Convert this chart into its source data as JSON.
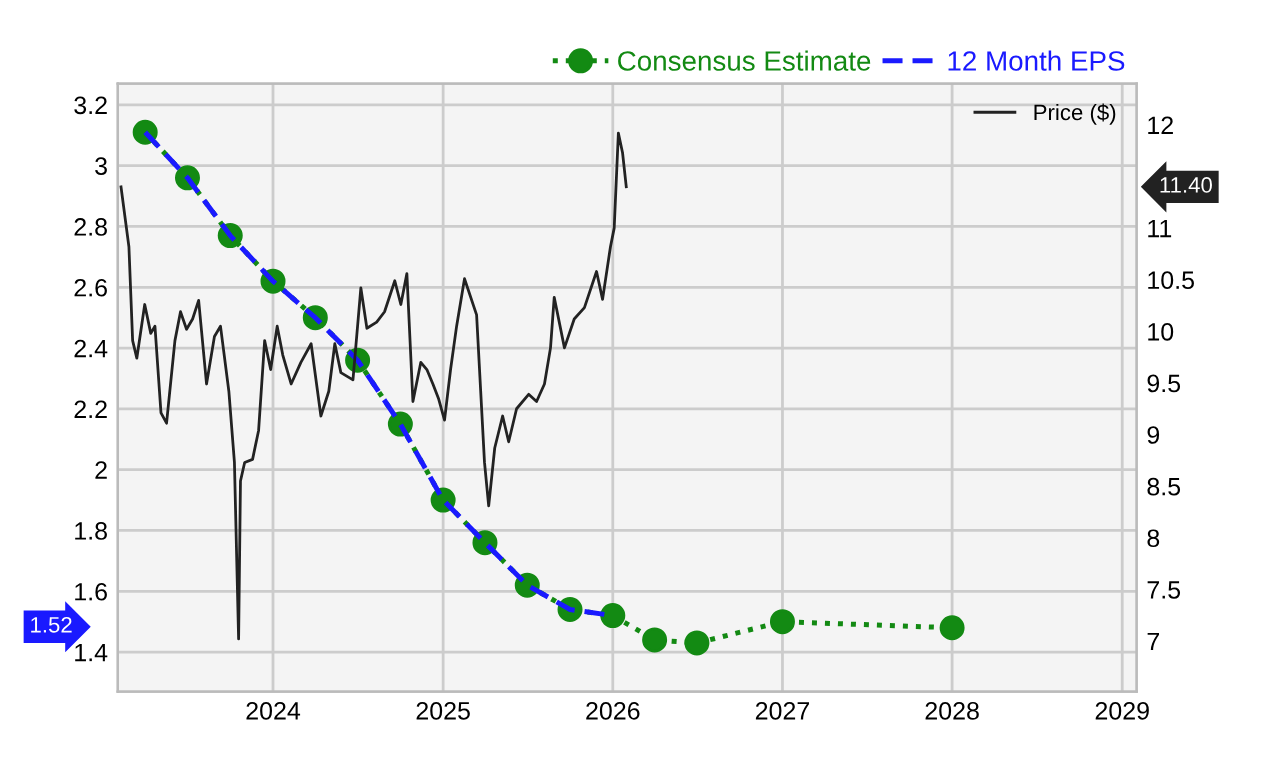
{
  "chart_data": {
    "type": "line",
    "x": [
      "2023-04-01",
      "2023-07-01",
      "2023-10-01",
      "2024-01-01",
      "2024-04-01",
      "2024-07-01",
      "2024-10-01",
      "2025-01-01",
      "2025-04-01",
      "2025-07-01",
      "2025-10-01",
      "2026-01-01",
      "2026-04-01",
      "2026-07-01",
      "2027-01-01",
      "2028-01-01"
    ],
    "series": [
      {
        "name": "Consensus Estimate",
        "color": "#138a13",
        "line_style": "dotted",
        "marker": "circle",
        "values": [
          3.11,
          2.96,
          2.77,
          2.62,
          2.5,
          2.36,
          2.15,
          1.9,
          1.76,
          1.62,
          1.54,
          1.52,
          1.44,
          1.43,
          1.5,
          1.48
        ]
      },
      {
        "name": "12 Month EPS",
        "color": "#1a1aff",
        "line_style": "dashed",
        "marker": "none",
        "values": [
          3.11,
          2.96,
          2.77,
          2.62,
          2.5,
          2.36,
          2.15,
          1.9,
          1.76,
          1.62,
          1.54,
          1.52,
          null,
          null,
          null,
          null
        ]
      },
      {
        "name": "Price ($)",
        "color": "#222222",
        "line_style": "solid",
        "marker": "none",
        "axis": "y2",
        "x": [
          "2023-02-08",
          "2023-02-25",
          "2023-03-05",
          "2023-03-14",
          "2023-03-31",
          "2023-04-13",
          "2023-04-22",
          "2023-05-05",
          "2023-05-17",
          "2023-06-04",
          "2023-06-16",
          "2023-06-29",
          "2023-07-12",
          "2023-07-25",
          "2023-08-11",
          "2023-08-28",
          "2023-09-10",
          "2023-09-28",
          "2023-10-10",
          "2023-10-19",
          "2023-10-23",
          "2023-11-01",
          "2023-11-18",
          "2023-12-01",
          "2023-12-14",
          "2023-12-27",
          "2024-01-10",
          "2024-01-22",
          "2024-02-09",
          "2024-03-01",
          "2024-03-23",
          "2024-04-13",
          "2024-04-30",
          "2024-05-13",
          "2024-05-26",
          "2024-06-21",
          "2024-07-08",
          "2024-07-21",
          "2024-08-11",
          "2024-08-28",
          "2024-09-19",
          "2024-10-02",
          "2024-10-15",
          "2024-10-28",
          "2024-11-14",
          "2024-11-27",
          "2024-12-10",
          "2024-12-22",
          "2025-01-04",
          "2025-01-17",
          "2025-01-30",
          "2025-02-16",
          "2025-03-14",
          "2025-03-31",
          "2025-04-09",
          "2025-04-22",
          "2025-05-09",
          "2025-05-22",
          "2025-06-08",
          "2025-07-04",
          "2025-07-21",
          "2025-08-07",
          "2025-08-20",
          "2025-08-28",
          "2025-09-19",
          "2025-10-10",
          "2025-11-01",
          "2025-11-27",
          "2025-12-10",
          "2025-12-27",
          "2026-01-04",
          "2026-01-13",
          "2026-01-22",
          "2026-01-30"
        ],
        "values": [
          11.4,
          10.82,
          9.91,
          9.74,
          10.26,
          9.98,
          10.05,
          9.21,
          9.11,
          9.91,
          10.19,
          10.02,
          10.12,
          10.3,
          9.49,
          9.95,
          10.05,
          9.42,
          8.73,
          7.02,
          8.55,
          8.73,
          8.76,
          9.04,
          9.91,
          9.63,
          10.05,
          9.77,
          9.49,
          9.7,
          9.88,
          9.18,
          9.42,
          9.88,
          9.6,
          9.53,
          10.42,
          10.03,
          10.09,
          10.19,
          10.49,
          10.26,
          10.56,
          9.32,
          9.7,
          9.63,
          9.49,
          9.35,
          9.14,
          9.63,
          10.05,
          10.51,
          10.16,
          8.73,
          8.31,
          8.87,
          9.18,
          8.93,
          9.25,
          9.39,
          9.32,
          9.49,
          9.84,
          10.33,
          9.84,
          10.12,
          10.23,
          10.58,
          10.31,
          10.82,
          11.0,
          11.92,
          11.73,
          11.4
        ]
      }
    ],
    "xlim": [
      "2023-02-01",
      "2029-02-01"
    ],
    "xticks": [
      "2024",
      "2025",
      "2026",
      "2027",
      "2028",
      "2029"
    ],
    "ylim": [
      1.27,
      3.27
    ],
    "yticks": [
      1.4,
      1.6,
      1.8,
      {
        "value": 2,
        "label": "2"
      },
      2.2,
      2.4,
      2.6,
      2.8,
      {
        "value": 3,
        "label": "3"
      },
      3.2
    ],
    "y2lim": [
      6.51,
      12.4
    ],
    "y2ticks": [
      7,
      7.5,
      8,
      8.5,
      9,
      9.5,
      10,
      10.5,
      11,
      12
    ],
    "annotations": [
      "1.52",
      "11.40"
    ],
    "grid": true,
    "legend": "top right"
  }
}
